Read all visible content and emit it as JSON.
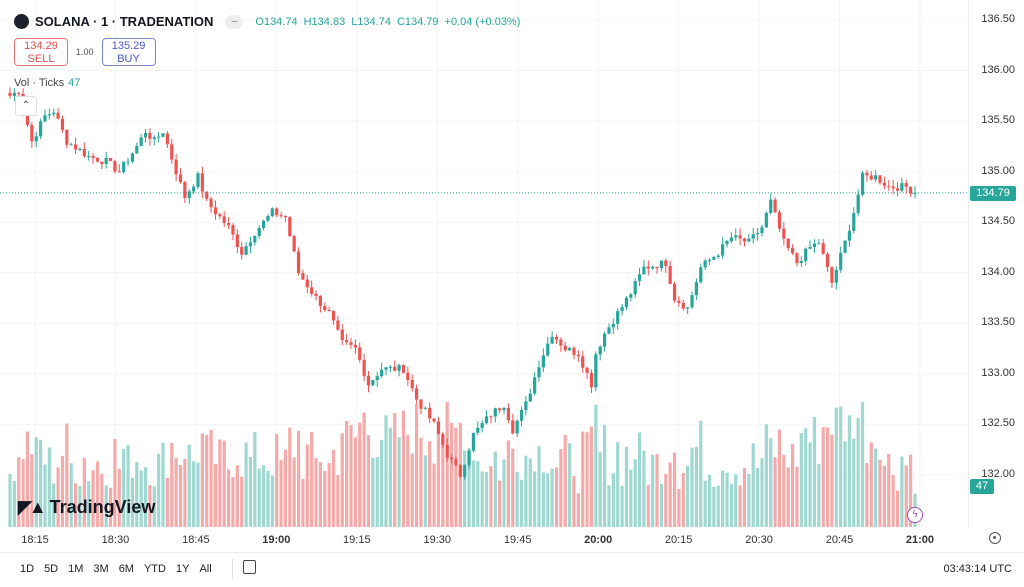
{
  "header": {
    "symbol": "SOLANA · 1 · TRADENATION",
    "open": "O134.74",
    "high": "H134.83",
    "low": "L134.74",
    "close": "C134.79",
    "change": "+0.04 (+0.03%)"
  },
  "trade": {
    "sell_price": "134.29",
    "sell_label": "SELL",
    "quantity": "1.00",
    "buy_price": "135.29",
    "buy_label": "BUY"
  },
  "volume_indicator": {
    "label": "Vol · Ticks",
    "value": "47"
  },
  "branding": "TradingView",
  "price_axis": {
    "labels": [
      "136.50",
      "136.00",
      "135.50",
      "135.00",
      "134.50",
      "134.00",
      "133.50",
      "133.00",
      "132.50",
      "132.00"
    ],
    "current": "134.79",
    "volume_current": "47"
  },
  "time_axis": {
    "labels": [
      {
        "t": "18:15",
        "bold": false
      },
      {
        "t": "18:30",
        "bold": false
      },
      {
        "t": "18:45",
        "bold": false
      },
      {
        "t": "19:00",
        "bold": true
      },
      {
        "t": "19:15",
        "bold": false
      },
      {
        "t": "19:30",
        "bold": false
      },
      {
        "t": "19:45",
        "bold": false
      },
      {
        "t": "20:00",
        "bold": true
      },
      {
        "t": "20:15",
        "bold": false
      },
      {
        "t": "20:30",
        "bold": false
      },
      {
        "t": "20:45",
        "bold": false
      },
      {
        "t": "21:00",
        "bold": true
      }
    ]
  },
  "bottom_bar": {
    "ranges": [
      "1D",
      "5D",
      "1M",
      "3M",
      "6M",
      "YTD",
      "1Y",
      "All"
    ],
    "clock": "03:43:14 UTC"
  },
  "colors": {
    "up": "#26a69a",
    "down": "#ef5350",
    "vol_up": "#9fd8d1",
    "vol_down": "#f4aaa9"
  },
  "chart_data": {
    "type": "candlestick",
    "interval": "1 minute",
    "ylim": [
      131.7,
      136.6
    ],
    "xrange": [
      "18:12",
      "20:54"
    ],
    "last_price": 134.79,
    "key_closes": [
      [
        0,
        135.75
      ],
      [
        2,
        135.8
      ],
      [
        5,
        135.3
      ],
      [
        8,
        135.55
      ],
      [
        10,
        135.6
      ],
      [
        13,
        135.3
      ],
      [
        18,
        135.15
      ],
      [
        22,
        135.1
      ],
      [
        25,
        135.0
      ],
      [
        29,
        135.25
      ],
      [
        31,
        135.4
      ],
      [
        33,
        135.3
      ],
      [
        35,
        135.4
      ],
      [
        38,
        135.0
      ],
      [
        40,
        134.75
      ],
      [
        43,
        134.95
      ],
      [
        45,
        134.7
      ],
      [
        50,
        134.45
      ],
      [
        53,
        134.2
      ],
      [
        56,
        134.4
      ],
      [
        60,
        134.6
      ],
      [
        63,
        134.55
      ],
      [
        66,
        134.0
      ],
      [
        70,
        133.75
      ],
      [
        73,
        133.6
      ],
      [
        76,
        133.3
      ],
      [
        79,
        133.25
      ],
      [
        82,
        132.9
      ],
      [
        85,
        133.05
      ],
      [
        90,
        133.05
      ],
      [
        93,
        132.75
      ],
      [
        97,
        132.5
      ],
      [
        100,
        132.2
      ],
      [
        103,
        132.0
      ],
      [
        106,
        132.4
      ],
      [
        110,
        132.6
      ],
      [
        113,
        132.7
      ],
      [
        115,
        132.45
      ],
      [
        118,
        132.7
      ],
      [
        121,
        133.1
      ],
      [
        124,
        133.4
      ],
      [
        127,
        133.25
      ],
      [
        130,
        133.2
      ],
      [
        133,
        132.9
      ],
      [
        134,
        133.2
      ],
      [
        136,
        133.4
      ],
      [
        139,
        133.6
      ],
      [
        142,
        133.8
      ],
      [
        145,
        134.05
      ],
      [
        150,
        134.1
      ],
      [
        152,
        133.75
      ],
      [
        155,
        133.65
      ],
      [
        158,
        134.05
      ],
      [
        162,
        134.2
      ],
      [
        165,
        134.35
      ],
      [
        169,
        134.3
      ],
      [
        172,
        134.45
      ],
      [
        174,
        134.7
      ],
      [
        177,
        134.3
      ],
      [
        180,
        134.1
      ],
      [
        183,
        134.25
      ],
      [
        185,
        134.3
      ],
      [
        188,
        133.9
      ],
      [
        191,
        134.3
      ],
      [
        193,
        134.6
      ],
      [
        195,
        134.95
      ],
      [
        198,
        134.95
      ],
      [
        201,
        134.85
      ],
      [
        205,
        134.85
      ],
      [
        207,
        134.79
      ]
    ],
    "volume_scale": [
      0,
      100
    ]
  }
}
